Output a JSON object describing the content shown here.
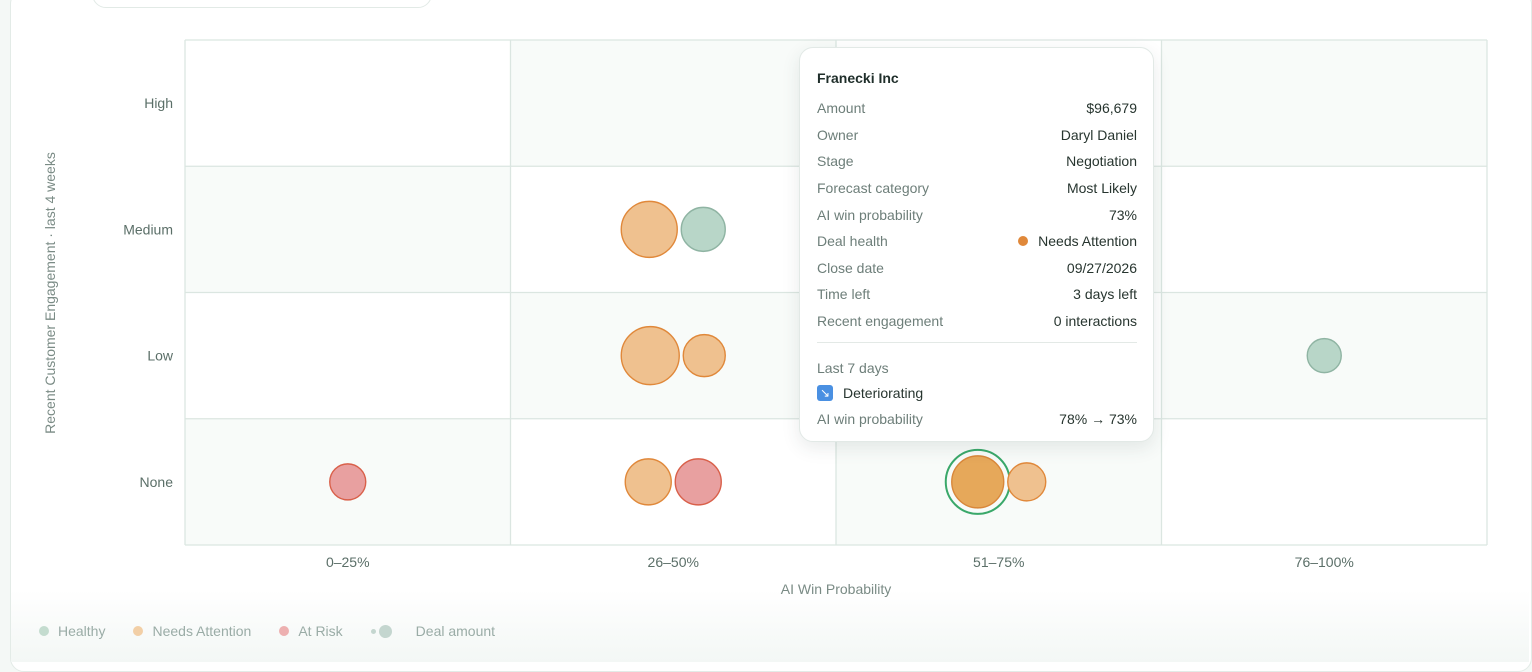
{
  "chart_data": {
    "type": "scatter",
    "xlabel": "AI Win Probability",
    "ylabel": "Recent Customer Engagement · last 4 weeks",
    "x_categories": [
      "0–25%",
      "26–50%",
      "51–75%",
      "76–100%"
    ],
    "y_categories": [
      "None",
      "Low",
      "Medium",
      "High"
    ],
    "colors": {
      "Healthy": "#b8d6c8",
      "Needs Attention": "#efc18f",
      "At Risk": "#e8a0a0",
      "Selected": "#e6a85a"
    },
    "stroke_colors": {
      "Healthy": "#8fb4a3",
      "Needs Attention": "#e0883a",
      "At Risk": "#d9604a",
      "Selected": "#d9873a"
    },
    "points": [
      {
        "x": "26–50%",
        "y": "Medium",
        "health": "Needs Attention",
        "size": 28
      },
      {
        "x": "26–50%",
        "y": "Medium",
        "health": "Healthy",
        "size": 22
      },
      {
        "x": "26–50%",
        "y": "Low",
        "health": "Needs Attention",
        "size": 29
      },
      {
        "x": "26–50%",
        "y": "Low",
        "health": "Needs Attention",
        "size": 21
      },
      {
        "x": "76–100%",
        "y": "Low",
        "health": "Healthy",
        "size": 17
      },
      {
        "x": "0–25%",
        "y": "None",
        "health": "At Risk",
        "size": 18
      },
      {
        "x": "26–50%",
        "y": "None",
        "health": "Needs Attention",
        "size": 23
      },
      {
        "x": "26–50%",
        "y": "None",
        "health": "At Risk",
        "size": 23
      },
      {
        "x": "51–75%",
        "y": "None",
        "health": "Selected",
        "size": 26,
        "selected": true,
        "deal": "Franecki Inc"
      },
      {
        "x": "51–75%",
        "y": "None",
        "health": "Needs Attention",
        "size": 19
      }
    ],
    "legend": [
      "Healthy",
      "Needs Attention",
      "At Risk",
      "Deal amount"
    ],
    "legend_colors": [
      "#b8d6c8",
      "#efc18f",
      "#e8a0a0",
      "#c4d6cf"
    ]
  },
  "tooltip": {
    "title": "Franecki Inc",
    "rows": [
      {
        "label": "Amount",
        "value": "$96,679"
      },
      {
        "label": "Owner",
        "value": "Daryl Daniel"
      },
      {
        "label": "Stage",
        "value": "Negotiation"
      },
      {
        "label": "Forecast category",
        "value": "Most Likely"
      },
      {
        "label": "AI win probability",
        "value": "73%"
      },
      {
        "label": "Deal health",
        "value": "Needs Attention"
      },
      {
        "label": "Close date",
        "value": "09/27/2026"
      },
      {
        "label": "Time left",
        "value": "3 days left"
      },
      {
        "label": "Recent engagement",
        "value": "0 interactions"
      }
    ],
    "period_label": "Last 7 days",
    "trend": "Deteriorating",
    "trend_icon": "trend-down-icon",
    "change_label": "AI win probability",
    "change_value": "78% → 73%"
  }
}
